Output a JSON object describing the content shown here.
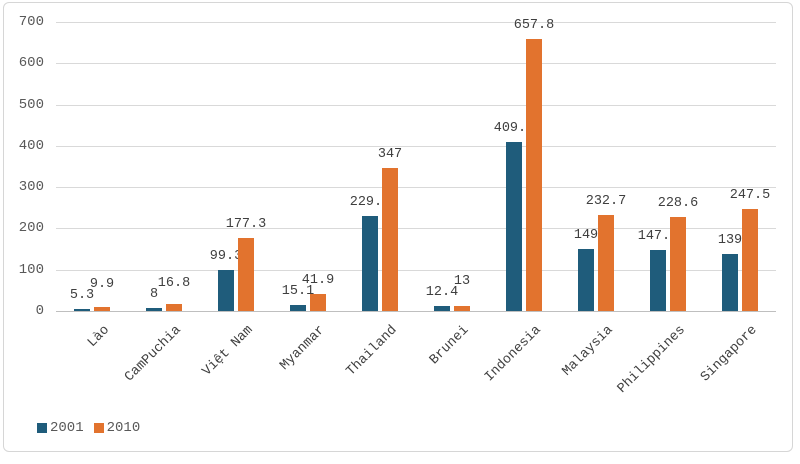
{
  "chart_data": {
    "type": "bar",
    "title": "",
    "categories": [
      "Lào",
      "CamPuchia",
      "Việt Nam",
      "Myanmar",
      "Thailand",
      "Brunei",
      "Indonesia",
      "Malaysia",
      "Philippines",
      "Singapore"
    ],
    "series": [
      {
        "name": "2001",
        "color": "#1f5c7b",
        "values": [
          5.3,
          8,
          99.3,
          15.1,
          229.1,
          12.4,
          409.4,
          149,
          147.2,
          139
        ]
      },
      {
        "name": "2010",
        "color": "#e2732e",
        "values": [
          9.9,
          16.8,
          177.3,
          41.9,
          347,
          13,
          657.8,
          232.7,
          228.6,
          247.5
        ]
      }
    ],
    "data_labels_visible": true,
    "ylim": [
      0,
      700
    ],
    "ytick_step": 100,
    "yticks": [
      "0",
      "100",
      "200",
      "300",
      "400",
      "500",
      "600",
      "700"
    ],
    "xlabel": "",
    "ylabel": "",
    "grid": true,
    "legend_position": "bottom-left",
    "gridline_color": "#d9d9d9",
    "axis_color": "#bfbfbf"
  }
}
